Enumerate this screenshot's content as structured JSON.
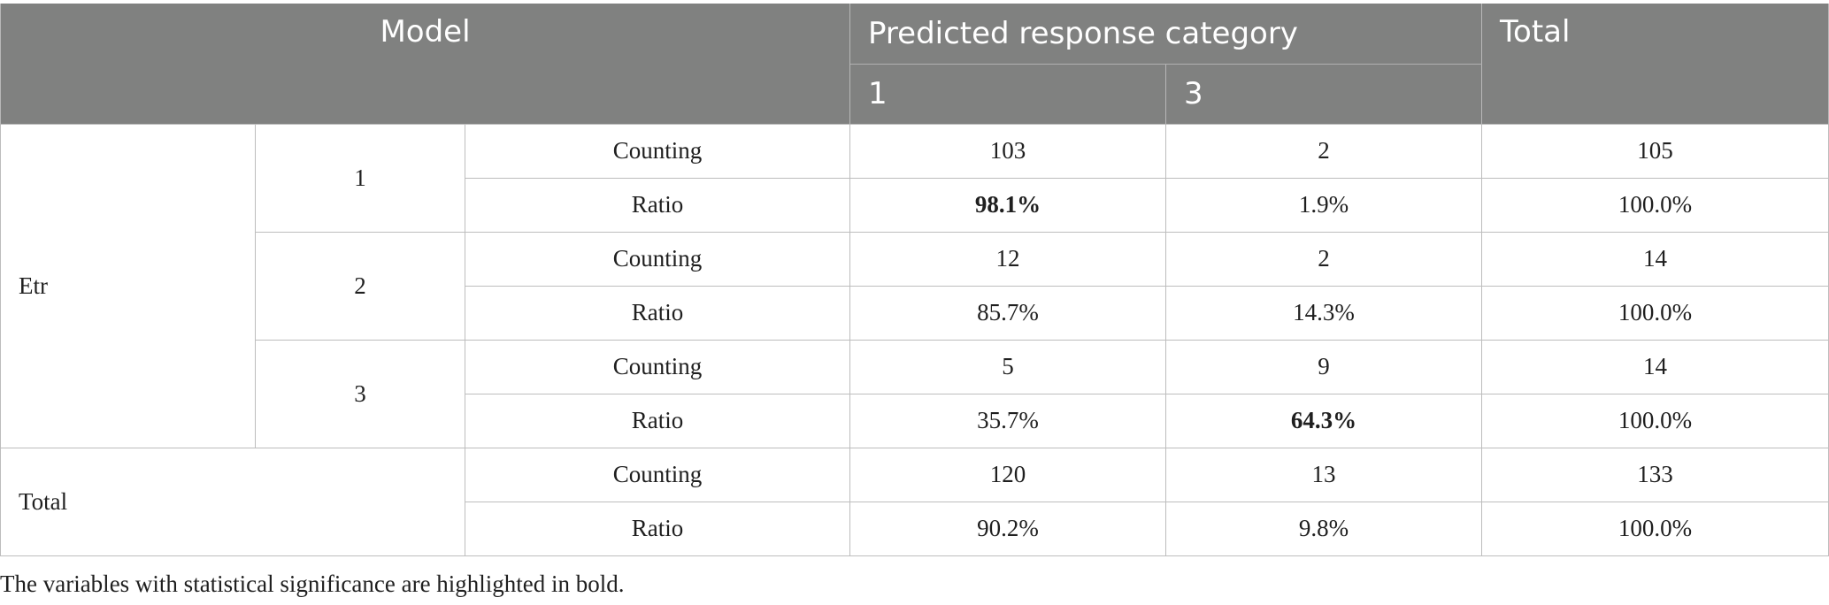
{
  "header": {
    "model": "Model",
    "predicted": "Predicted response category",
    "total": "Total",
    "pred_cat_1": "1",
    "pred_cat_3": "3"
  },
  "groups": {
    "etr": "Etr",
    "total": "Total"
  },
  "categories": {
    "c1": "1",
    "c2": "2",
    "c3": "3"
  },
  "measures": {
    "counting": "Counting",
    "ratio": "Ratio"
  },
  "rows": [
    {
      "pred1": "103",
      "pred3": "2",
      "total": "105"
    },
    {
      "pred1": "98.1%",
      "pred3": "1.9%",
      "total": "100.0%"
    },
    {
      "pred1": "12",
      "pred3": "2",
      "total": "14"
    },
    {
      "pred1": "85.7%",
      "pred3": "14.3%",
      "total": "100.0%"
    },
    {
      "pred1": "5",
      "pred3": "9",
      "total": "14"
    },
    {
      "pred1": "35.7%",
      "pred3": "64.3%",
      "total": "100.0%"
    },
    {
      "pred1": "120",
      "pred3": "13",
      "total": "133"
    },
    {
      "pred1": "90.2%",
      "pred3": "9.8%",
      "total": "100.0%"
    }
  ],
  "footnote": "The variables with statistical significance are highlighted in bold."
}
